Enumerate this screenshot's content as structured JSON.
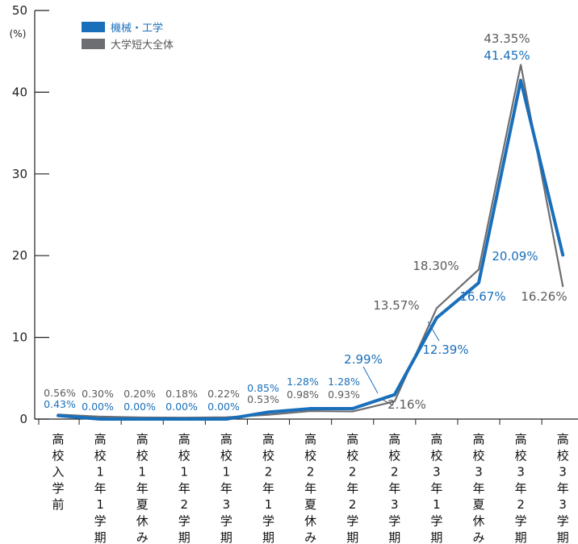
{
  "chart_data": {
    "type": "line",
    "ylabel": "(%)",
    "ylim": [
      0,
      50
    ],
    "yticks": [
      0,
      10,
      20,
      30,
      40,
      50
    ],
    "categories": [
      "高校入学前",
      "高校1年1学期",
      "高校1年夏休み",
      "高校1年2学期",
      "高校1年3学期",
      "高校2年1学期",
      "高校2年夏休み",
      "高校2年2学期",
      "高校2年3学期",
      "高校3年1学期",
      "高校3年夏休み",
      "高校3年2学期",
      "高校3年3学期"
    ],
    "series": [
      {
        "name": "機械・工学",
        "color": "#1a6fba",
        "values": [
          0.43,
          0.0,
          0.0,
          0.0,
          0.0,
          0.85,
          1.28,
          1.28,
          2.99,
          12.39,
          16.67,
          41.45,
          20.09
        ],
        "labels": [
          "0.43%",
          "0.00%",
          "0.00%",
          "0.00%",
          "0.00%",
          "0.85%",
          "1.28%",
          "1.28%",
          "2.99%",
          "12.39%",
          "16.67%",
          "41.45%",
          "20.09%"
        ]
      },
      {
        "name": "大学短大全体",
        "color": "#6d6e71",
        "values": [
          0.56,
          0.3,
          0.2,
          0.18,
          0.22,
          0.53,
          0.98,
          0.93,
          2.16,
          13.57,
          18.3,
          43.35,
          16.26
        ],
        "labels": [
          "0.56%",
          "0.30%",
          "0.20%",
          "0.18%",
          "0.22%",
          "0.53%",
          "0.98%",
          "0.93%",
          "2.16%",
          "13.57%",
          "18.30%",
          "43.35%",
          "16.26%"
        ]
      }
    ],
    "legend_position": "top-left",
    "grid": false
  }
}
